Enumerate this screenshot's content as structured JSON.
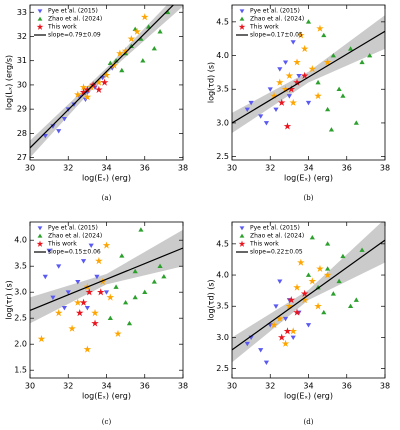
{
  "chart_data": [
    {
      "type": "scatter",
      "caption": "(a)",
      "xlabel": "log(Eₓ) (erg)",
      "ylabel": "log(Lₓ) (erg/s)",
      "xlim": [
        30,
        38
      ],
      "xticks": [
        30,
        32,
        34,
        36,
        38
      ],
      "ylim": [
        26.9,
        33.3
      ],
      "yticks": [
        27,
        28,
        29,
        30,
        31,
        32,
        33
      ],
      "legend": "upper left",
      "series": [
        {
          "name": "Pye et al. (2015)",
          "color": "#5a5af2",
          "marker": "triangle-down",
          "x": [
            31.2,
            31.8,
            32.3,
            32.6,
            33.0,
            33.4,
            31.5,
            32.0,
            33.8,
            34.3,
            30.8,
            32.9
          ],
          "values": [
            28.3,
            28.6,
            29.2,
            29.5,
            29.7,
            29.9,
            28.1,
            29.0,
            30.3,
            30.7,
            27.9,
            29.4
          ]
        },
        {
          "name": "Zhao et al. (2024)",
          "color": "#2ca02c",
          "marker": "triangle-up",
          "x": [
            34.5,
            35.0,
            35.3,
            35.8,
            36.2,
            36.5,
            34.8,
            35.5,
            36.8,
            37.2,
            34.2,
            35.9
          ],
          "values": [
            31.0,
            31.3,
            31.6,
            31.9,
            32.4,
            31.5,
            30.6,
            32.3,
            32.2,
            33.0,
            30.9,
            31.0
          ]
        },
        {
          "color": "#ffa500",
          "marker": "star",
          "x": [
            32.5,
            33.2,
            33.6,
            34.0,
            34.4,
            35.0,
            35.6,
            36.0,
            33.0,
            34.7,
            32.8,
            35.3
          ],
          "values": [
            29.6,
            29.9,
            30.1,
            30.4,
            30.8,
            31.4,
            32.2,
            32.8,
            29.5,
            31.3,
            29.9,
            31.9
          ]
        },
        {
          "name": "This work",
          "color": "#e8141e",
          "marker": "star",
          "x": [
            33.0,
            33.3,
            33.6,
            32.8,
            33.9
          ],
          "values": [
            29.8,
            30.0,
            29.8,
            29.7,
            30.1
          ]
        }
      ],
      "fit": {
        "name": "slope=0.79±0.09",
        "color": "#000000",
        "band_color": "#a9a9a9",
        "x": [
          30,
          34,
          38
        ],
        "values": [
          27.4,
          30.55,
          33.7
        ],
        "lower": [
          27.0,
          30.45,
          33.25
        ],
        "upper": [
          27.7,
          30.7,
          34.0
        ]
      }
    },
    {
      "type": "scatter",
      "caption": "(b)",
      "xlabel": "log(Eₓ) (erg)",
      "ylabel": "log(τd) (s)",
      "xlim": [
        30,
        38
      ],
      "xticks": [
        30,
        32,
        34,
        36,
        38
      ],
      "ylim": [
        2.45,
        4.75
      ],
      "yticks": [
        2.5,
        {
          "value": 3,
          "label": "3.0"
        },
        3.5,
        {
          "value": 4,
          "label": "4.0"
        },
        4.5
      ],
      "legend": "upper left",
      "series": [
        {
          "name": "Pye et al. (2015)",
          "color": "#5a5af2",
          "marker": "triangle-down",
          "x": [
            31,
            31.5,
            32,
            32.3,
            32.8,
            33,
            33.5,
            31.8,
            32.5,
            34,
            30.8,
            33.2
          ],
          "values": [
            3.3,
            3.1,
            3.5,
            3.2,
            3.9,
            3.4,
            3.7,
            3.0,
            3.8,
            3.3,
            3.2,
            4.2
          ]
        },
        {
          "name": "Zhao et al. (2024)",
          "color": "#2ca02c",
          "marker": "triangle-up",
          "x": [
            34.5,
            35,
            35.3,
            35.8,
            36.2,
            36.8,
            34.8,
            35.6,
            37.2,
            34,
            36.5,
            35.2
          ],
          "values": [
            3.6,
            3.2,
            4.0,
            3.4,
            4.1,
            3.9,
            4.3,
            3.5,
            4.0,
            4.5,
            3.0,
            2.9
          ]
        },
        {
          "color": "#ffa500",
          "marker": "star",
          "x": [
            32.5,
            33,
            33.4,
            33.8,
            34.2,
            34.6,
            33.2,
            32.8,
            34.5,
            33.6,
            35,
            32.2
          ],
          "values": [
            3.6,
            3.7,
            3.9,
            4.1,
            3.8,
            4.4,
            3.3,
            3.5,
            3.4,
            4.3,
            3.9,
            3.4
          ]
        },
        {
          "name": "This work",
          "color": "#e8141e",
          "marker": "star",
          "x": [
            32.9,
            33.1,
            33.4,
            32.6,
            33.8
          ],
          "values": [
            2.95,
            3.5,
            3.6,
            3.3,
            3.7
          ]
        }
      ],
      "fit": {
        "name": "slope=0.17±0.05",
        "color": "#000000",
        "band_color": "#a9a9a9",
        "x": [
          30,
          34,
          38
        ],
        "values": [
          3.0,
          3.68,
          4.36
        ],
        "lower": [
          2.85,
          3.6,
          4.1
        ],
        "upper": [
          3.15,
          3.76,
          4.6
        ]
      }
    },
    {
      "type": "scatter",
      "caption": "(c)",
      "xlabel": "log(Eₓ) (erg)",
      "ylabel": "log(τr) (s)",
      "xlim": [
        30,
        38
      ],
      "xticks": [
        30,
        32,
        34,
        36,
        38
      ],
      "ylim": [
        1.35,
        4.35
      ],
      "yticks": [
        1.5,
        {
          "value": 2,
          "label": "2.0"
        },
        2.5,
        {
          "value": 3,
          "label": "3.0"
        },
        3.5,
        {
          "value": 4,
          "label": "4.0"
        }
      ],
      "legend": "upper left",
      "series": [
        {
          "name": "Pye et al. (2015)",
          "color": "#5a5af2",
          "marker": "triangle-down",
          "x": [
            31,
            31.5,
            32,
            32.5,
            33,
            33.5,
            31.2,
            32.8,
            34,
            31.8,
            33.2,
            30.8
          ],
          "values": [
            3.8,
            3.5,
            3.0,
            3.2,
            2.7,
            3.3,
            2.9,
            3.6,
            3.0,
            2.7,
            3.9,
            3.3
          ]
        },
        {
          "name": "Zhao et al. (2024)",
          "color": "#2ca02c",
          "marker": "triangle-up",
          "x": [
            34.5,
            35,
            35.5,
            36,
            36.5,
            35.2,
            34.8,
            36.8,
            35.8,
            34.2,
            37,
            35.5
          ],
          "values": [
            3.1,
            2.8,
            3.4,
            3.0,
            3.2,
            2.4,
            3.7,
            3.5,
            4.2,
            2.5,
            3.3,
            2.9
          ]
        },
        {
          "color": "#ffa500",
          "marker": "star",
          "x": [
            32.5,
            33,
            33.4,
            33.8,
            34.2,
            32.2,
            31.5,
            33.6,
            34.6,
            33,
            34,
            30.6
          ],
          "values": [
            2.8,
            3.1,
            2.6,
            3.2,
            2.9,
            2.3,
            2.6,
            3.6,
            2.2,
            1.9,
            3.9,
            2.1
          ]
        },
        {
          "name": "This work",
          "color": "#e8141e",
          "marker": "star",
          "x": [
            32.8,
            33.1,
            33.4,
            32.6,
            33.7
          ],
          "values": [
            2.8,
            3.0,
            2.4,
            2.6,
            3.0
          ]
        }
      ],
      "fit": {
        "name": "slope=0.15±0.06",
        "color": "#000000",
        "band_color": "#a9a9a9",
        "x": [
          30,
          34,
          38
        ],
        "values": [
          2.65,
          3.25,
          3.85
        ],
        "lower": [
          2.4,
          3.15,
          3.5
        ],
        "upper": [
          2.9,
          3.35,
          4.2
        ]
      }
    },
    {
      "type": "scatter",
      "caption": "(d)",
      "xlabel": "log(Eₓ) (erg)",
      "ylabel": "log(τd) (s)",
      "xlim": [
        30,
        38
      ],
      "xticks": [
        30,
        32,
        34,
        36,
        38
      ],
      "ylim": [
        2.35,
        4.85
      ],
      "yticks": [
        2.5,
        {
          "value": 3,
          "label": "3.0"
        },
        3.5,
        {
          "value": 4,
          "label": "4.0"
        },
        4.5
      ],
      "legend": "upper left",
      "series": [
        {
          "name": "Pye et al. (2015)",
          "color": "#5a5af2",
          "marker": "triangle-down",
          "x": [
            31,
            31.5,
            32,
            32.3,
            32.8,
            33,
            33.5,
            31.8,
            32.5,
            34,
            30.8,
            33.2
          ],
          "values": [
            3.0,
            2.8,
            3.2,
            3.5,
            3.3,
            3.6,
            3.4,
            2.6,
            3.9,
            3.2,
            2.9,
            3.0
          ]
        },
        {
          "name": "Zhao et al. (2024)",
          "color": "#2ca02c",
          "marker": "triangle-up",
          "x": [
            34.5,
            35,
            35.3,
            35.8,
            36.2,
            36.8,
            34.8,
            35.6,
            34,
            35,
            36.5,
            34.2
          ],
          "values": [
            3.8,
            4.1,
            3.7,
            4.3,
            3.5,
            4.4,
            3.4,
            3.9,
            4.0,
            4.5,
            3.6,
            4.6
          ]
        },
        {
          "color": "#ffa500",
          "marker": "star",
          "x": [
            32.5,
            33,
            33.4,
            33.8,
            34.2,
            34.6,
            33.2,
            32.8,
            34.5,
            33.6,
            35,
            32.2
          ],
          "values": [
            3.3,
            3.5,
            3.8,
            3.6,
            3.9,
            4.1,
            3.1,
            2.9,
            3.5,
            4.2,
            4.0,
            3.2
          ]
        },
        {
          "name": "This work",
          "color": "#e8141e",
          "marker": "star",
          "x": [
            32.9,
            33.1,
            33.4,
            32.6,
            33.8
          ],
          "values": [
            3.1,
            3.6,
            3.4,
            3.0,
            3.7
          ]
        }
      ],
      "fit": {
        "name": "slope=0.22±0.05",
        "color": "#000000",
        "band_color": "#a9a9a9",
        "x": [
          30,
          34,
          38
        ],
        "values": [
          2.8,
          3.68,
          4.56
        ],
        "lower": [
          2.6,
          3.6,
          4.2
        ],
        "upper": [
          3.0,
          3.76,
          4.9
        ]
      }
    }
  ]
}
